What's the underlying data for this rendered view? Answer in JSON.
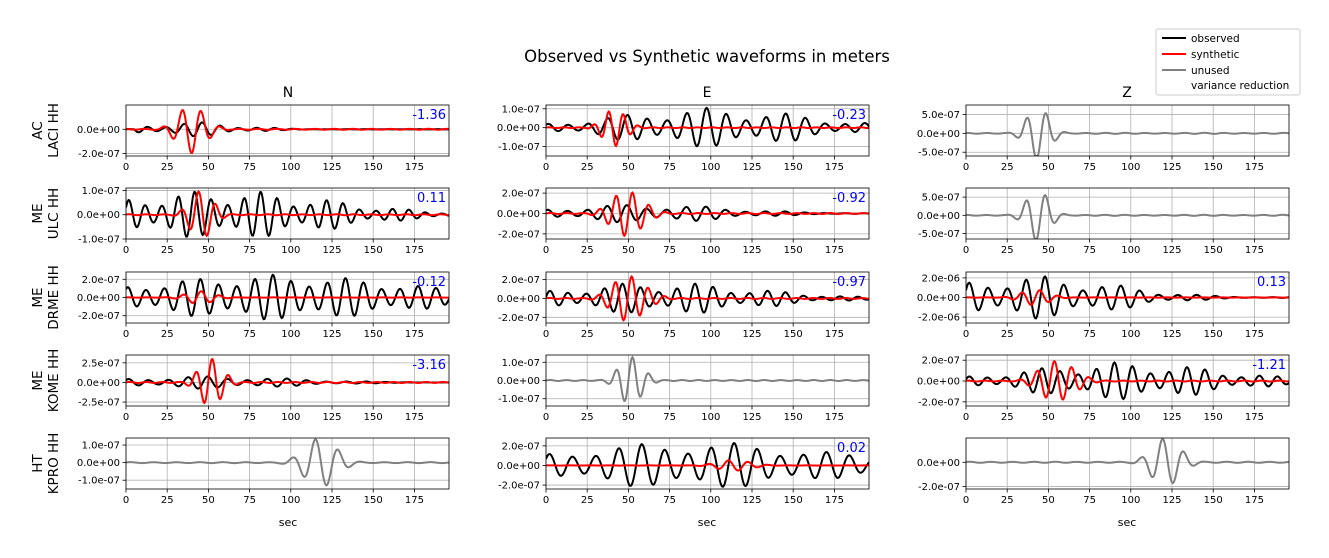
{
  "title": "Observed vs Synthetic waveforms in meters",
  "columns": [
    "N",
    "E",
    "Z"
  ],
  "xlabel": "sec",
  "colors": {
    "observed": "#000000",
    "synthetic": "#ff0000",
    "unused": "#808080",
    "variance_reduction": "#0000ff",
    "grid": "#b0b0b0"
  },
  "legend": {
    "placement": "top-right",
    "entries": [
      {
        "label": "observed",
        "color": "#000000",
        "line": true
      },
      {
        "label": "synthetic",
        "color": "#ff0000",
        "line": true
      },
      {
        "label": "unused",
        "color": "#808080",
        "line": true
      },
      {
        "label": "variance reduction",
        "color": "#0000ff",
        "line": false
      }
    ]
  },
  "stations": [
    {
      "name": "AC\nLACI HH",
      "label_lines": [
        "AC",
        "LACI HH"
      ]
    },
    {
      "name": "ME\nULC HH",
      "label_lines": [
        "ME",
        "ULC HH"
      ]
    },
    {
      "name": "ME\nDRME HH",
      "label_lines": [
        "ME",
        "DRME HH"
      ]
    },
    {
      "name": "ME\nKOME HH",
      "label_lines": [
        "ME",
        "KOME HH"
      ]
    },
    {
      "name": "HT\nKPRO HH",
      "label_lines": [
        "HT",
        "KPRO HH"
      ]
    }
  ],
  "chart_data": {
    "type": "line",
    "title": "Observed vs Synthetic waveforms in meters",
    "xlabel": "sec",
    "xlim": [
      0,
      196
    ],
    "xticks": [
      0,
      25,
      50,
      75,
      100,
      125,
      150,
      175
    ],
    "xtick_labels": [
      "0",
      "25",
      "50",
      "75",
      "100",
      "125",
      "150",
      "175"
    ],
    "grid": true,
    "panels": [
      {
        "station": "AC LACI HH",
        "component": "N",
        "status": "used",
        "variance_reduction": "-1.36",
        "ylim": [
          -2.2e-07,
          2e-07
        ],
        "yticks": [
          0,
          -2e-07
        ],
        "ytick_labels": [
          "0.0e+00",
          "-2.0e-07"
        ],
        "observed": {
          "amp": 6e-08,
          "period": 11.0,
          "start": 5,
          "peak": 38,
          "width": 40,
          "phase": 0.3,
          "beat": 0.35
        },
        "synthetic": {
          "amp": 2e-07,
          "period": 11.5,
          "start": 15,
          "peak": 40,
          "width": 12,
          "phase": 1.8,
          "beat": 0.1
        }
      },
      {
        "station": "AC LACI HH",
        "component": "E",
        "status": "used",
        "variance_reduction": "-0.23",
        "ylim": [
          -1.5e-07,
          1.2e-07
        ],
        "yticks": [
          1e-07,
          0,
          -1e-07
        ],
        "ytick_labels": [
          "1.0e-07",
          "0.0e+00",
          "-1.0e-07"
        ],
        "observed": {
          "amp": 1.05e-07,
          "period": 12.0,
          "start": 0,
          "peak": 100,
          "width": 80,
          "phase": 0.8,
          "beat": 0.3
        },
        "synthetic": {
          "amp": 1e-07,
          "period": 9.0,
          "start": 25,
          "peak": 42,
          "width": 10,
          "phase": 0.2,
          "beat": 0.1
        }
      },
      {
        "station": "AC LACI HH",
        "component": "Z",
        "status": "unused",
        "variance_reduction": "",
        "ylim": [
          -6e-07,
          7.5e-07
        ],
        "yticks": [
          5e-07,
          0,
          -5e-07
        ],
        "ytick_labels": [
          "5.0e-07",
          "0.0e+00",
          "-5.0e-07"
        ],
        "unused": {
          "amp": 7e-07,
          "period": 12.0,
          "start": 20,
          "peak": 44,
          "width": 10,
          "phase": 1.2,
          "beat": 0.2
        }
      },
      {
        "station": "ME ULC HH",
        "component": "N",
        "status": "used",
        "variance_reduction": "0.11",
        "ylim": [
          -1e-07,
          1.1e-07
        ],
        "yticks": [
          1e-07,
          0,
          -1e-07
        ],
        "ytick_labels": [
          "1.0e-07",
          "0.0e+00",
          "-1.0e-07"
        ],
        "observed": {
          "amp": 1e-07,
          "period": 10.0,
          "start": 0,
          "peak": 60,
          "width": 90,
          "phase": 0.5,
          "beat": 0.3
        },
        "synthetic": {
          "amp": 1e-07,
          "period": 10.5,
          "start": 20,
          "peak": 46,
          "width": 10,
          "phase": 0.4,
          "beat": 0.1
        }
      },
      {
        "station": "ME ULC HH",
        "component": "E",
        "status": "used",
        "variance_reduction": "-0.92",
        "ylim": [
          -2.5e-07,
          2.5e-07
        ],
        "yticks": [
          2e-07,
          0,
          -2e-07
        ],
        "ytick_labels": [
          "2.0e-07",
          "0.0e+00",
          "-2.0e-07"
        ],
        "observed": {
          "amp": 9e-08,
          "period": 12.0,
          "start": 0,
          "peak": 60,
          "width": 70,
          "phase": 1.0,
          "beat": 0.3
        },
        "synthetic": {
          "amp": 2.3e-07,
          "period": 10.0,
          "start": 25,
          "peak": 50,
          "width": 14,
          "phase": 0.0,
          "beat": 0.1
        }
      },
      {
        "station": "ME ULC HH",
        "component": "Z",
        "status": "unused",
        "variance_reduction": "",
        "ylim": [
          -6.5e-07,
          7.5e-07
        ],
        "yticks": [
          5e-07,
          0,
          -5e-07
        ],
        "ytick_labels": [
          "5.0e-07",
          "0.0e+00",
          "-5.0e-07"
        ],
        "unused": {
          "amp": 7.2e-07,
          "period": 12.0,
          "start": 22,
          "peak": 44,
          "width": 10,
          "phase": 1.4,
          "beat": 0.2
        }
      },
      {
        "station": "ME DRME HH",
        "component": "N",
        "status": "used",
        "variance_reduction": "-0.12",
        "ylim": [
          -2.8e-07,
          2.8e-07
        ],
        "yticks": [
          2e-07,
          0,
          -2e-07
        ],
        "ytick_labels": [
          "2.0e-07",
          "0.0e+00",
          "-2.0e-07"
        ],
        "observed": {
          "amp": 2.5e-07,
          "period": 11.0,
          "start": 0,
          "peak": 90,
          "width": 110,
          "phase": 0.9,
          "beat": 0.25
        },
        "synthetic": {
          "amp": 7e-08,
          "period": 11.0,
          "start": 20,
          "peak": 45,
          "width": 12,
          "phase": 0.6,
          "beat": 0.1
        }
      },
      {
        "station": "ME DRME HH",
        "component": "E",
        "status": "used",
        "variance_reduction": "-0.97",
        "ylim": [
          -2.6e-07,
          2.8e-07
        ],
        "yticks": [
          2e-07,
          0,
          -2e-07
        ],
        "ytick_labels": [
          "2.0e-07",
          "0.0e+00",
          "-2.0e-07"
        ],
        "observed": {
          "amp": 1.7e-07,
          "period": 11.0,
          "start": 0,
          "peak": 70,
          "width": 80,
          "phase": 0.2,
          "beat": 0.3
        },
        "synthetic": {
          "amp": 2.6e-07,
          "period": 10.0,
          "start": 25,
          "peak": 51,
          "width": 14,
          "phase": 0.3,
          "beat": 0.1
        }
      },
      {
        "station": "ME DRME HH",
        "component": "Z",
        "status": "used",
        "variance_reduction": "0.13",
        "ylim": [
          -2.6e-06,
          2.6e-06
        ],
        "yticks": [
          2e-06,
          0,
          -2e-06
        ],
        "ytick_labels": [
          "2.0e-06",
          "0.0e+00",
          "-2.0e-06"
        ],
        "observed": {
          "amp": 2.2e-06,
          "period": 11.5,
          "start": 0,
          "peak": 40,
          "width": 70,
          "phase": 0.5,
          "beat": 0.3
        },
        "synthetic": {
          "amp": 8e-07,
          "period": 11.0,
          "start": 20,
          "peak": 42,
          "width": 12,
          "phase": 1.1,
          "beat": 0.1
        }
      },
      {
        "station": "ME KOME HH",
        "component": "N",
        "status": "used",
        "variance_reduction": "-3.16",
        "ylim": [
          -3e-07,
          3.5e-07
        ],
        "yticks": [
          2.5e-07,
          0,
          -2.5e-07
        ],
        "ytick_labels": [
          "2.5e-07",
          "0.0e+00",
          "-2.5e-07"
        ],
        "observed": {
          "amp": 8e-08,
          "period": 12.0,
          "start": 0,
          "peak": 50,
          "width": 70,
          "phase": 0.7,
          "beat": 0.3
        },
        "synthetic": {
          "amp": 3.3e-07,
          "period": 10.0,
          "start": 30,
          "peak": 52,
          "width": 10,
          "phase": 0.1,
          "beat": 0.1
        }
      },
      {
        "station": "ME KOME HH",
        "component": "E",
        "status": "unused",
        "variance_reduction": "",
        "ylim": [
          -1.4e-07,
          1.4e-07
        ],
        "yticks": [
          1e-07,
          0,
          -1e-07
        ],
        "ytick_labels": [
          "1.0e-07",
          "0.0e+00",
          "-1.0e-07"
        ],
        "unused": {
          "amp": 1.4e-07,
          "period": 10.0,
          "start": 25,
          "peak": 52,
          "width": 10,
          "phase": 0.0,
          "beat": 0.1
        }
      },
      {
        "station": "ME KOME HH",
        "component": "Z",
        "status": "used",
        "variance_reduction": "-1.21",
        "ylim": [
          -2.4e-07,
          2.5e-07
        ],
        "yticks": [
          2e-07,
          0,
          -2e-07
        ],
        "ytick_labels": [
          "2.0e-07",
          "0.0e+00",
          "-2.0e-07"
        ],
        "observed": {
          "amp": 1.8e-07,
          "period": 11.0,
          "start": 0,
          "peak": 95,
          "width": 80,
          "phase": 0.4,
          "beat": 0.3
        },
        "synthetic": {
          "amp": 2.3e-07,
          "period": 10.5,
          "start": 30,
          "peak": 56,
          "width": 14,
          "phase": 0.9,
          "beat": 0.1
        }
      },
      {
        "station": "HT KPRO HH",
        "component": "N",
        "status": "unused",
        "variance_reduction": "",
        "ylim": [
          -1.5e-07,
          1.4e-07
        ],
        "yticks": [
          1e-07,
          0,
          -1e-07
        ],
        "ytick_labels": [
          "1.0e-07",
          "0.0e+00",
          "-1.0e-07"
        ],
        "unused": {
          "amp": 1.4e-07,
          "period": 14.0,
          "start": 55,
          "peak": 118,
          "width": 14,
          "phase": 0.3,
          "beat": 0.1
        }
      },
      {
        "station": "HT KPRO HH",
        "component": "E",
        "status": "used",
        "variance_reduction": "0.02",
        "ylim": [
          -2.4e-07,
          2.8e-07
        ],
        "yticks": [
          2e-07,
          0,
          -2e-07
        ],
        "ytick_labels": [
          "2.0e-07",
          "0.0e+00",
          "-2.0e-07"
        ],
        "observed": {
          "amp": 2.4e-07,
          "period": 14.0,
          "start": 0,
          "peak": 90,
          "width": 110,
          "phase": 0.6,
          "beat": 0.25
        },
        "synthetic": {
          "amp": 6e-08,
          "period": 12.0,
          "start": 80,
          "peak": 115,
          "width": 14,
          "phase": 0.2,
          "beat": 0.1
        }
      },
      {
        "station": "HT KPRO HH",
        "component": "Z",
        "status": "unused",
        "variance_reduction": "",
        "ylim": [
          -2.2e-07,
          2e-07
        ],
        "yticks": [
          0,
          -2e-07
        ],
        "ytick_labels": [
          "0.0e+00",
          "-2.0e-07"
        ],
        "unused": {
          "amp": 2.2e-07,
          "period": 13.0,
          "start": 60,
          "peak": 122,
          "width": 12,
          "phase": 0.5,
          "beat": 0.1
        }
      }
    ]
  }
}
